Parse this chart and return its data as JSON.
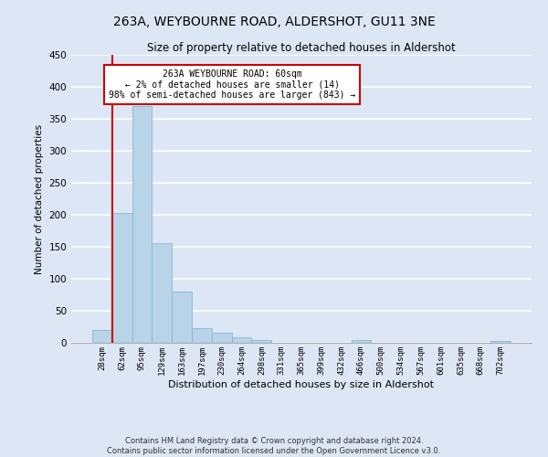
{
  "title": "263A, WEYBOURNE ROAD, ALDERSHOT, GU11 3NE",
  "subtitle": "Size of property relative to detached houses in Aldershot",
  "xlabel": "Distribution of detached houses by size in Aldershot",
  "ylabel": "Number of detached properties",
  "bar_color": "#b8d4e8",
  "bar_edge_color": "#7ab3d0",
  "background_color": "#dce6f5",
  "grid_color": "#ffffff",
  "bins": [
    "28sqm",
    "62sqm",
    "95sqm",
    "129sqm",
    "163sqm",
    "197sqm",
    "230sqm",
    "264sqm",
    "298sqm",
    "331sqm",
    "365sqm",
    "399sqm",
    "432sqm",
    "466sqm",
    "500sqm",
    "534sqm",
    "567sqm",
    "601sqm",
    "635sqm",
    "668sqm",
    "702sqm"
  ],
  "values": [
    20,
    203,
    370,
    156,
    80,
    23,
    16,
    8,
    5,
    0,
    0,
    0,
    0,
    5,
    0,
    0,
    0,
    0,
    0,
    0,
    3
  ],
  "ylim": [
    0,
    450
  ],
  "yticks": [
    0,
    50,
    100,
    150,
    200,
    250,
    300,
    350,
    400,
    450
  ],
  "annotation_title": "263A WEYBOURNE ROAD: 60sqm",
  "annotation_line1": "← 2% of detached houses are smaller (14)",
  "annotation_line2": "98% of semi-detached houses are larger (843) →",
  "annotation_box_color": "#ffffff",
  "annotation_border_color": "#cc0000",
  "property_line_color": "#cc0000",
  "footnote1": "Contains HM Land Registry data © Crown copyright and database right 2024.",
  "footnote2": "Contains public sector information licensed under the Open Government Licence v3.0."
}
